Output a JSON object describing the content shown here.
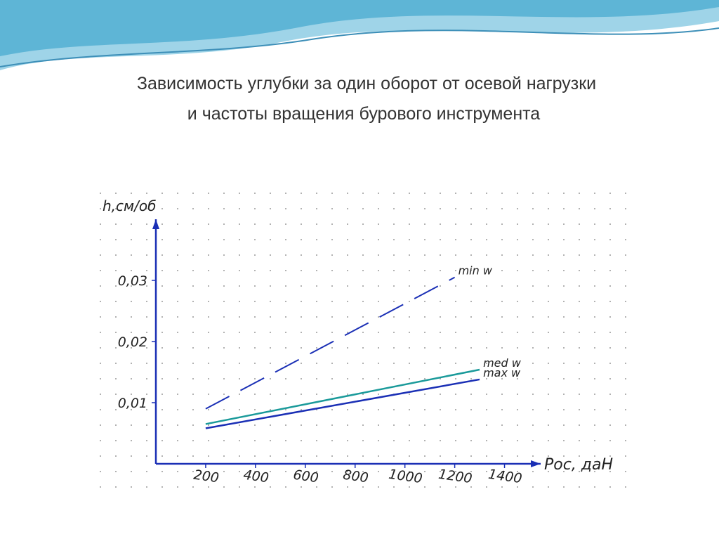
{
  "chart_data": {
    "type": "line",
    "title": "Зависимость углубки за один  оборот от осевой нагрузки и частоты вращения бурового инструмента",
    "y_label": "h,см/об",
    "x_label": "Pос, даН",
    "xlim": [
      0,
      1500
    ],
    "ylim": [
      0,
      0.04
    ],
    "xticks": [
      200,
      400,
      600,
      800,
      1000,
      1200,
      1400
    ],
    "yticks": [
      {
        "value": 0.01,
        "label": "0,01"
      },
      {
        "value": 0.02,
        "label": "0,02"
      },
      {
        "value": 0.03,
        "label": "0,03"
      }
    ],
    "series": [
      {
        "name": "min w",
        "color": "#1a2fb5",
        "dash": true,
        "x": [
          200,
          1200
        ],
        "values": [
          0.009,
          0.0305
        ]
      },
      {
        "name": "med w",
        "color": "#1a9a9a",
        "dash": false,
        "x": [
          200,
          1300
        ],
        "values": [
          0.0065,
          0.0154
        ]
      },
      {
        "name": "max w",
        "color": "#1a2fb5",
        "dash": false,
        "x": [
          200,
          1300
        ],
        "values": [
          0.0058,
          0.0138
        ]
      }
    ]
  }
}
